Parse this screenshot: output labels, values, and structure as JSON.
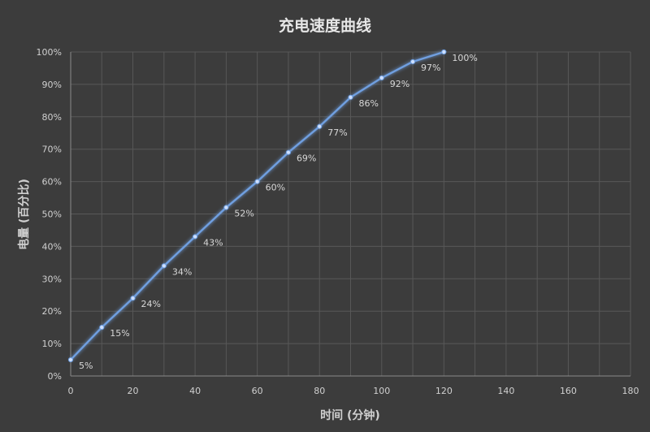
{
  "chart_data": {
    "type": "line",
    "title": "充电速度曲线",
    "xlabel": "时间 (分钟)",
    "ylabel": "电量 (百分比)",
    "xlim": [
      0,
      180
    ],
    "ylim": [
      0,
      100
    ],
    "xticks": [
      0,
      20,
      40,
      60,
      80,
      100,
      120,
      140,
      160,
      180
    ],
    "yticks": [
      0,
      10,
      20,
      30,
      40,
      50,
      60,
      70,
      80,
      90,
      100
    ],
    "yunit": "%",
    "grid": true,
    "line_color": "#6f9fe0",
    "background": "#3c3c3c",
    "series": [
      {
        "x": [
          0,
          10,
          20,
          30,
          40,
          50,
          60,
          70,
          80,
          90,
          100,
          110,
          120
        ],
        "y": [
          5,
          15,
          24,
          34,
          43,
          52,
          60,
          69,
          77,
          86,
          92,
          97,
          100
        ],
        "labels": [
          "5%",
          "15%",
          "24%",
          "34%",
          "43%",
          "52%",
          "60%",
          "69%",
          "77%",
          "86%",
          "92%",
          "97%",
          "100%"
        ]
      }
    ]
  }
}
